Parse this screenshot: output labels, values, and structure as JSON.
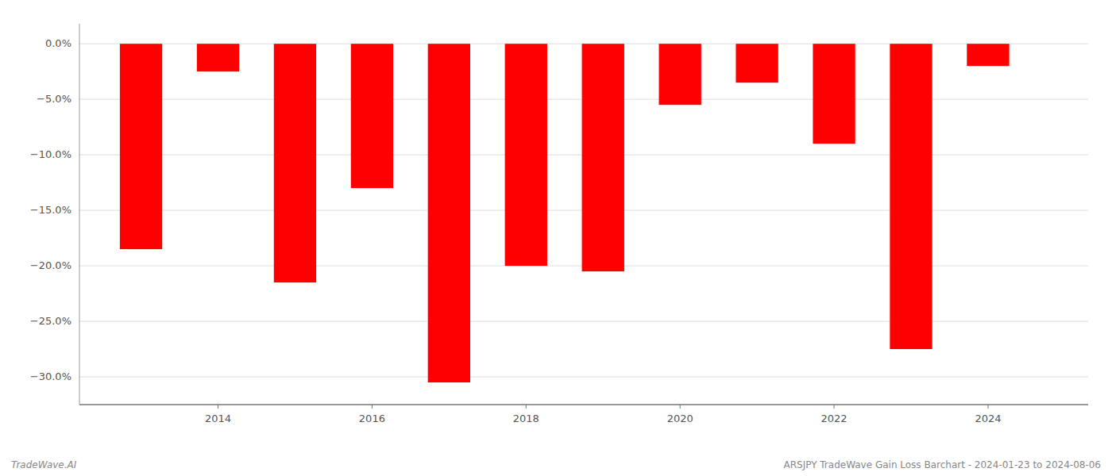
{
  "chart_data": {
    "type": "bar",
    "title": "ARSJPY TradeWave Gain Loss Barchart - 2024-01-23 to 2024-08-06",
    "annotations": [
      "TradeWave.AI"
    ],
    "x": [
      2013,
      2014,
      2015,
      2016,
      2017,
      2018,
      2019,
      2020,
      2021,
      2022,
      2023,
      2024
    ],
    "values": [
      -0.185,
      -0.025,
      -0.215,
      -0.13,
      -0.305,
      -0.2,
      -0.205,
      -0.055,
      -0.035,
      -0.09,
      -0.275,
      -0.02
    ],
    "color": "#ff0000",
    "xlim": [
      2012.2,
      2025.3
    ],
    "xticks": [
      2014,
      2016,
      2018,
      2020,
      2022,
      2024
    ],
    "ylim": [
      -0.325,
      0.018
    ],
    "yticks": [
      {
        "value": 0.0,
        "label": "0.0%"
      },
      {
        "value": -0.05,
        "label": "−5.0%"
      },
      {
        "value": -0.1,
        "label": "−10.0%"
      },
      {
        "value": -0.15,
        "label": "−15.0%"
      },
      {
        "value": -0.2,
        "label": "−20.0%"
      },
      {
        "value": -0.25,
        "label": "−25.0%"
      },
      {
        "value": -0.3,
        "label": "−30.0%"
      }
    ],
    "grid": true
  }
}
